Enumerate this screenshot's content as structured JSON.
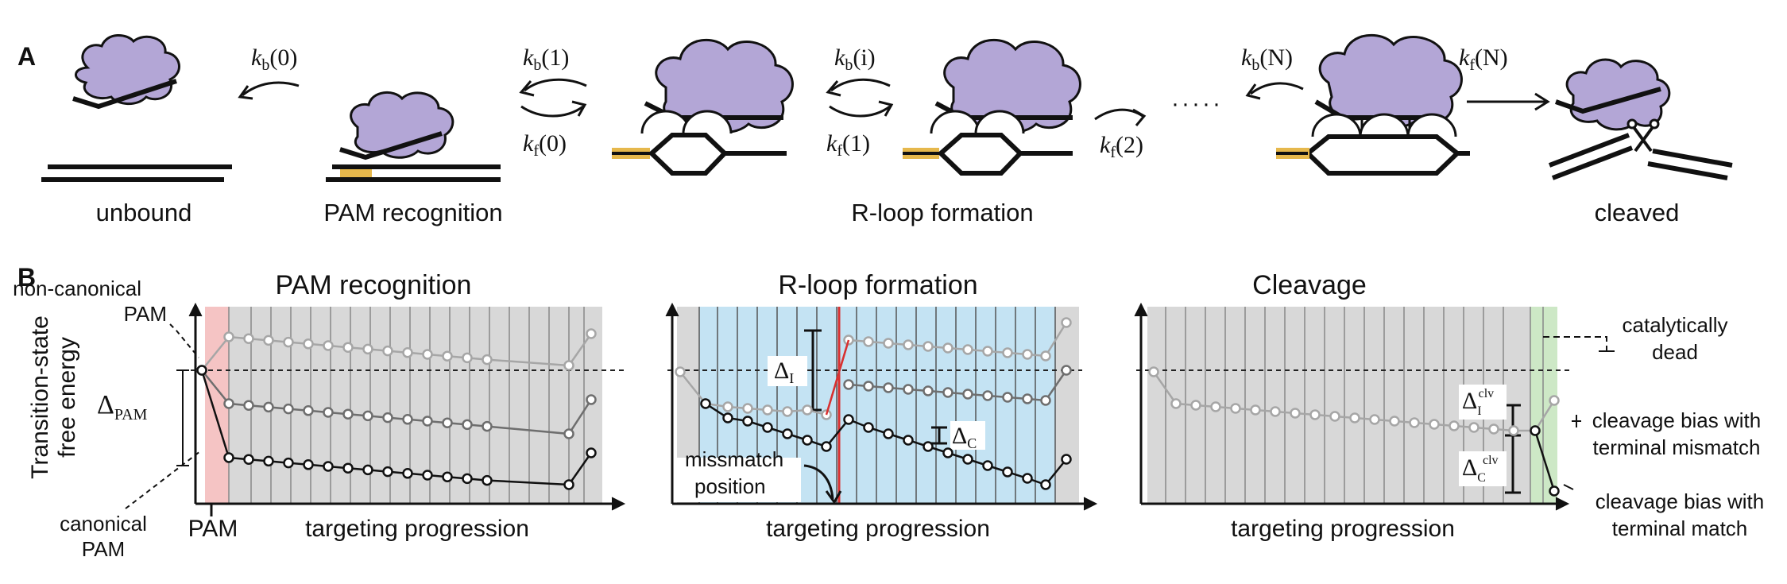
{
  "panel_a": {
    "letter": "A",
    "state_labels": {
      "unbound": "unbound",
      "pam_recognition": "PAM recognition",
      "rloop": "R-loop formation",
      "cleaved": "cleaved"
    },
    "rates": {
      "kb0_k": "k",
      "kb0_sub": "b",
      "kb0_arg": "(0)",
      "kb1_k": "k",
      "kb1_sub": "b",
      "kb1_arg": "(1)",
      "kf0_k": "k",
      "kf0_sub": "f",
      "kf0_arg": "(0)",
      "kbi_k": "k",
      "kbi_sub": "b",
      "kbi_arg": "(i)",
      "kf1_k": "k",
      "kf1_sub": "f",
      "kf1_arg": "(1)",
      "kf2_k": "k",
      "kf2_sub": "f",
      "kf2_arg": "(2)",
      "kbN_k": "k",
      "kbN_sub": "b",
      "kbN_arg": "(N)",
      "kfN_k": "k",
      "kfN_sub": "f",
      "kfN_arg": "(N)"
    },
    "ellipsis": "·····",
    "colors": {
      "protein": "#b3a6d6",
      "pam": "#e6b84c",
      "dna": "#222222"
    }
  },
  "panel_b": {
    "letter": "B",
    "y_axis_label_line1": "Transition-state",
    "y_axis_label_line2": "free energy",
    "x_axis_label": "targeting progression",
    "p1": {
      "title": "PAM recognition",
      "non_canonical_1": "non-canonical",
      "non_canonical_2": "PAM",
      "canonical_1": "canonical",
      "canonical_2": "PAM",
      "pam_tick": "PAM",
      "delta_main": "Δ",
      "delta_sub": "PAM"
    },
    "p2": {
      "title": "R-loop formation",
      "delta_i_main": "Δ",
      "delta_i_sub": "I",
      "delta_c_main": "Δ",
      "delta_c_sub": "C",
      "mismatch_1": "missmatch",
      "mismatch_2": "position"
    },
    "p3": {
      "title": "Cleavage",
      "cat_dead_1": "catalytically",
      "cat_dead_2": "dead",
      "bias_mm_1": "cleavage bias with",
      "bias_mm_2": "terminal mismatch",
      "bias_m_1": "cleavage bias with",
      "bias_m_2": "terminal match",
      "di_main": "Δ",
      "di_sub": "I",
      "di_sup": "clv",
      "dc_main": "Δ",
      "dc_sub": "C",
      "dc_sup": "clv"
    },
    "colors": {
      "gray_band": "#d8d8d8",
      "pam_band": "#f5c4c4",
      "rloop_band": "#c4e3f3",
      "clv_band": "#cde8c6",
      "mismatch_line": "#d93030",
      "light_series": "#a6a6a6",
      "mid_series": "#6e6e6e",
      "dark_series": "#111111"
    }
  }
}
